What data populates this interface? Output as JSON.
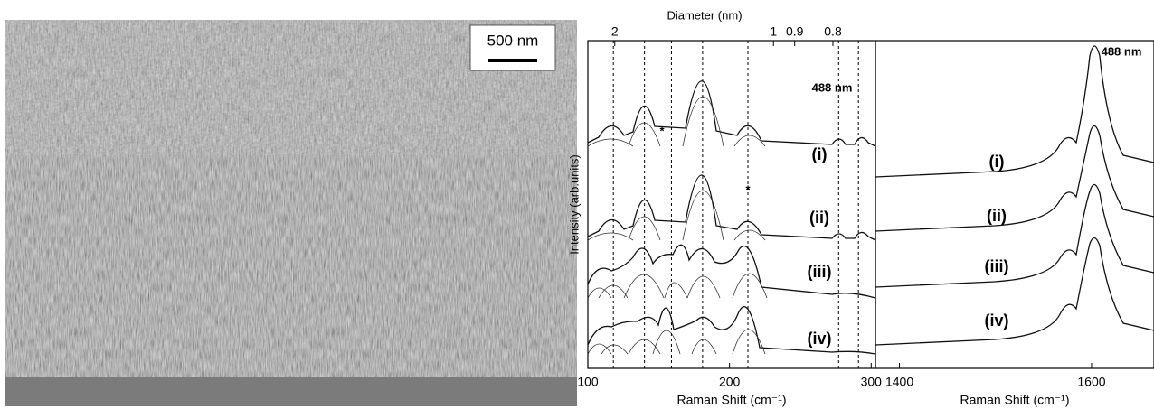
{
  "image": {
    "scale_bar": "500 nm"
  },
  "chart_data": [
    {
      "type": "line",
      "x_label": "Raman Shift (cm⁻¹)",
      "y_label": "Intensity (arb.units)",
      "top_axis_label": "Diameter (nm)",
      "xlim": [
        100,
        303
      ],
      "xticks": [
        100,
        200,
        300
      ],
      "top_ticks": [
        {
          "value": 119,
          "label": "2"
        },
        {
          "value": 231,
          "label": "1"
        },
        {
          "value": 246,
          "label": "0.9"
        },
        {
          "value": 273,
          "label": "0.8"
        }
      ],
      "vlines": [
        118,
        140,
        159,
        181,
        213,
        277,
        291
      ],
      "laser": "488  nm",
      "spectra_labels": [
        "(i)",
        "(ii)",
        "(iii)",
        "(iv)"
      ],
      "annotations": [
        "*",
        "*"
      ]
    },
    {
      "type": "line",
      "x_label": "Raman Shift (cm⁻¹)",
      "xlim": [
        1375,
        1665
      ],
      "xticks": [
        1400,
        1600
      ],
      "laser": "488  nm",
      "spectra_labels": [
        "(i)",
        "(ii)",
        "(iii)",
        "(iv)"
      ]
    }
  ]
}
